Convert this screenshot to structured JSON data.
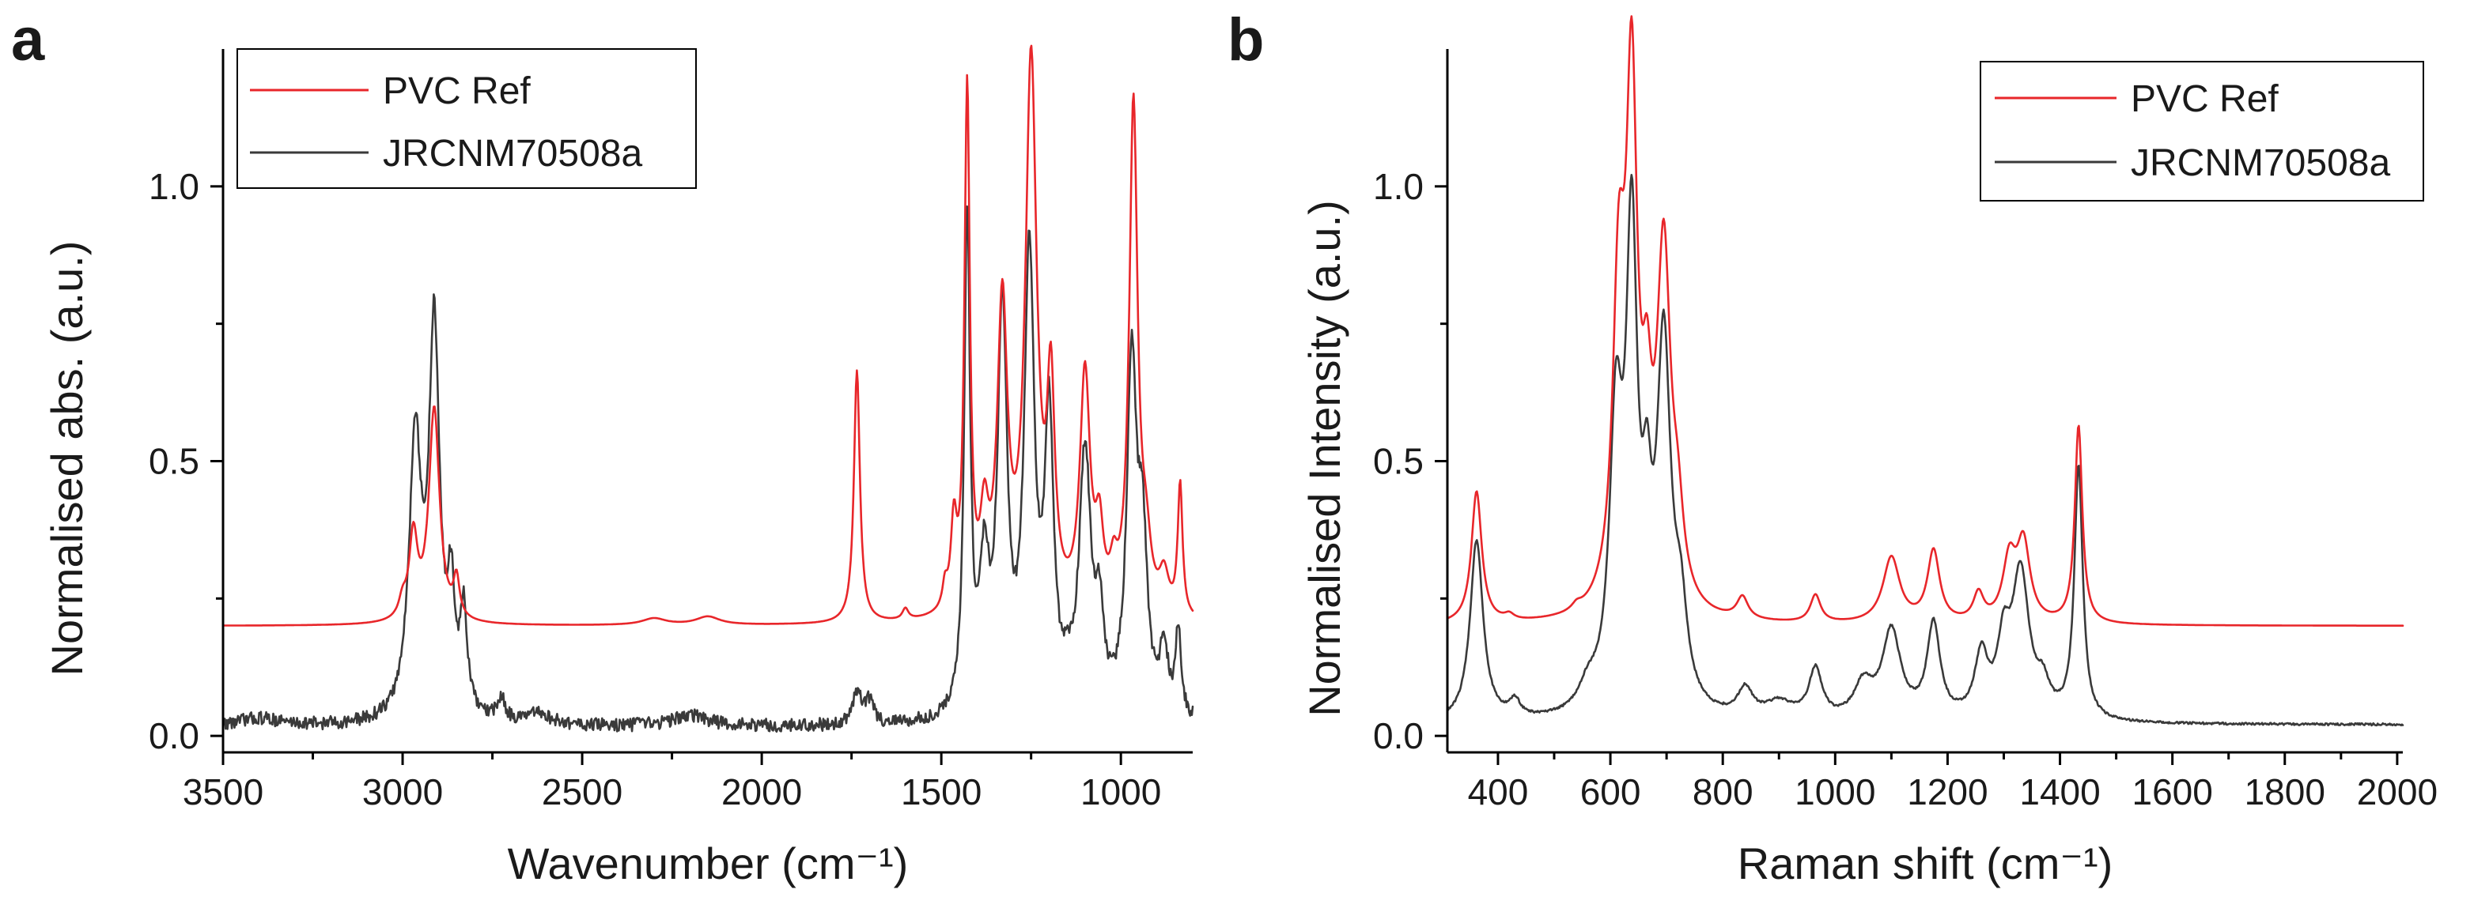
{
  "colors": {
    "ref": "#e8262a",
    "sample": "#3a3a3a"
  },
  "chart_data": [
    {
      "type": "line",
      "panel_label": "a",
      "title": "",
      "xlabel": "Wavenumber (cm⁻¹)",
      "ylabel": "Normalised abs. (a.u.)",
      "xlim": [
        3500,
        800
      ],
      "ylim": [
        -0.03,
        1.25
      ],
      "x_inverted": true,
      "xticks": [
        3500,
        3000,
        2500,
        2000,
        1500,
        1000
      ],
      "xtick_labels": [
        "3500",
        "3000",
        "2500",
        "2000",
        "1500",
        "1000"
      ],
      "yticks": [
        0.0,
        0.5,
        1.0
      ],
      "ytick_labels": [
        "0.0",
        "0.5",
        "1.0"
      ],
      "legend_position": "top-left",
      "series": [
        {
          "name": "PVC Ref",
          "color_key": "ref",
          "baseline": 0.2,
          "peaks": [
            {
              "x": 3000,
              "h": 0.03,
              "w": 12
            },
            {
              "x": 2970,
              "h": 0.15,
              "w": 14
            },
            {
              "x": 2912,
              "h": 0.39,
              "w": 18
            },
            {
              "x": 2850,
              "h": 0.07,
              "w": 10
            },
            {
              "x": 2300,
              "h": 0.012,
              "w": 40
            },
            {
              "x": 2150,
              "h": 0.015,
              "w": 40
            },
            {
              "x": 1735,
              "h": 0.46,
              "w": 10
            },
            {
              "x": 1600,
              "h": 0.02,
              "w": 10
            },
            {
              "x": 1490,
              "h": 0.04,
              "w": 8
            },
            {
              "x": 1465,
              "h": 0.15,
              "w": 10
            },
            {
              "x": 1428,
              "h": 0.95,
              "w": 9
            },
            {
              "x": 1380,
              "h": 0.15,
              "w": 14
            },
            {
              "x": 1330,
              "h": 0.55,
              "w": 17
            },
            {
              "x": 1250,
              "h": 1.0,
              "w": 19
            },
            {
              "x": 1195,
              "h": 0.38,
              "w": 13
            },
            {
              "x": 1100,
              "h": 0.43,
              "w": 17
            },
            {
              "x": 1060,
              "h": 0.13,
              "w": 13
            },
            {
              "x": 1020,
              "h": 0.06,
              "w": 12
            },
            {
              "x": 965,
              "h": 0.93,
              "w": 14
            },
            {
              "x": 930,
              "h": 0.1,
              "w": 16
            },
            {
              "x": 880,
              "h": 0.07,
              "w": 16
            },
            {
              "x": 835,
              "h": 0.24,
              "w": 8
            }
          ]
        },
        {
          "name": "JRCNM70508a",
          "color_key": "sample",
          "baseline": 0.015,
          "noise": 0.012,
          "peaks": [
            {
              "x": 3400,
              "h": 0.015,
              "w": 80
            },
            {
              "x": 2965,
              "h": 0.5,
              "w": 20
            },
            {
              "x": 2912,
              "h": 0.7,
              "w": 18
            },
            {
              "x": 2865,
              "h": 0.2,
              "w": 12
            },
            {
              "x": 2830,
              "h": 0.18,
              "w": 12
            },
            {
              "x": 2725,
              "h": 0.04,
              "w": 14
            },
            {
              "x": 2620,
              "h": 0.02,
              "w": 40
            },
            {
              "x": 2200,
              "h": 0.02,
              "w": 60
            },
            {
              "x": 1735,
              "h": 0.06,
              "w": 14
            },
            {
              "x": 1700,
              "h": 0.04,
              "w": 14
            },
            {
              "x": 1428,
              "h": 0.9,
              "w": 10
            },
            {
              "x": 1380,
              "h": 0.25,
              "w": 16
            },
            {
              "x": 1330,
              "h": 0.72,
              "w": 16
            },
            {
              "x": 1255,
              "h": 0.82,
              "w": 17
            },
            {
              "x": 1200,
              "h": 0.52,
              "w": 15
            },
            {
              "x": 1150,
              "h": 0.04,
              "w": 10
            },
            {
              "x": 1100,
              "h": 0.47,
              "w": 20
            },
            {
              "x": 1060,
              "h": 0.15,
              "w": 14
            },
            {
              "x": 970,
              "h": 0.63,
              "w": 16
            },
            {
              "x": 940,
              "h": 0.3,
              "w": 16
            },
            {
              "x": 880,
              "h": 0.12,
              "w": 14
            },
            {
              "x": 840,
              "h": 0.16,
              "w": 9
            }
          ]
        }
      ]
    },
    {
      "type": "line",
      "panel_label": "b",
      "title": "",
      "xlabel": "Raman shift (cm⁻¹)",
      "ylabel": "Normalised Intensity (a.u.)",
      "xlim": [
        310,
        2010
      ],
      "ylim": [
        -0.03,
        1.25
      ],
      "x_inverted": false,
      "xticks": [
        400,
        600,
        800,
        1000,
        1200,
        1400,
        1600,
        1800,
        2000
      ],
      "xtick_labels": [
        "400",
        "600",
        "800",
        "1000",
        "1200",
        "1400",
        "1600",
        "1800",
        "2000"
      ],
      "yticks": [
        0.0,
        0.5,
        1.0
      ],
      "ytick_labels": [
        "0.0",
        "0.5",
        "1.0"
      ],
      "legend_position": "top-right",
      "series": [
        {
          "name": "PVC Ref",
          "color_key": "ref",
          "baseline": 0.2,
          "peaks": [
            {
              "x": 362,
              "h": 0.24,
              "w": 11
            },
            {
              "x": 420,
              "h": 0.01,
              "w": 10
            },
            {
              "x": 540,
              "h": 0.01,
              "w": 10
            },
            {
              "x": 615,
              "h": 0.55,
              "w": 13
            },
            {
              "x": 638,
              "h": 0.9,
              "w": 12
            },
            {
              "x": 665,
              "h": 0.25,
              "w": 10
            },
            {
              "x": 695,
              "h": 0.64,
              "w": 15
            },
            {
              "x": 720,
              "h": 0.12,
              "w": 12
            },
            {
              "x": 835,
              "h": 0.04,
              "w": 12
            },
            {
              "x": 965,
              "h": 0.05,
              "w": 11
            },
            {
              "x": 1100,
              "h": 0.12,
              "w": 18
            },
            {
              "x": 1175,
              "h": 0.13,
              "w": 13
            },
            {
              "x": 1255,
              "h": 0.05,
              "w": 11
            },
            {
              "x": 1310,
              "h": 0.11,
              "w": 14
            },
            {
              "x": 1335,
              "h": 0.14,
              "w": 14
            },
            {
              "x": 1433,
              "h": 0.36,
              "w": 8
            }
          ]
        },
        {
          "name": "JRCNM70508a",
          "color_key": "sample",
          "baseline": 0.02,
          "noise": 0.002,
          "peaks": [
            {
              "x": 362,
              "h": 0.33,
              "w": 14
            },
            {
              "x": 430,
              "h": 0.03,
              "w": 12
            },
            {
              "x": 560,
              "h": 0.04,
              "w": 20
            },
            {
              "x": 610,
              "h": 0.5,
              "w": 14
            },
            {
              "x": 638,
              "h": 0.82,
              "w": 12
            },
            {
              "x": 665,
              "h": 0.25,
              "w": 10
            },
            {
              "x": 695,
              "h": 0.65,
              "w": 15
            },
            {
              "x": 725,
              "h": 0.15,
              "w": 14
            },
            {
              "x": 840,
              "h": 0.05,
              "w": 16
            },
            {
              "x": 900,
              "h": 0.03,
              "w": 30
            },
            {
              "x": 965,
              "h": 0.09,
              "w": 14
            },
            {
              "x": 1050,
              "h": 0.06,
              "w": 20
            },
            {
              "x": 1100,
              "h": 0.16,
              "w": 20
            },
            {
              "x": 1175,
              "h": 0.17,
              "w": 14
            },
            {
              "x": 1260,
              "h": 0.11,
              "w": 14
            },
            {
              "x": 1300,
              "h": 0.12,
              "w": 14
            },
            {
              "x": 1330,
              "h": 0.26,
              "w": 18
            },
            {
              "x": 1370,
              "h": 0.05,
              "w": 14
            },
            {
              "x": 1433,
              "h": 0.46,
              "w": 9
            }
          ]
        }
      ]
    }
  ]
}
